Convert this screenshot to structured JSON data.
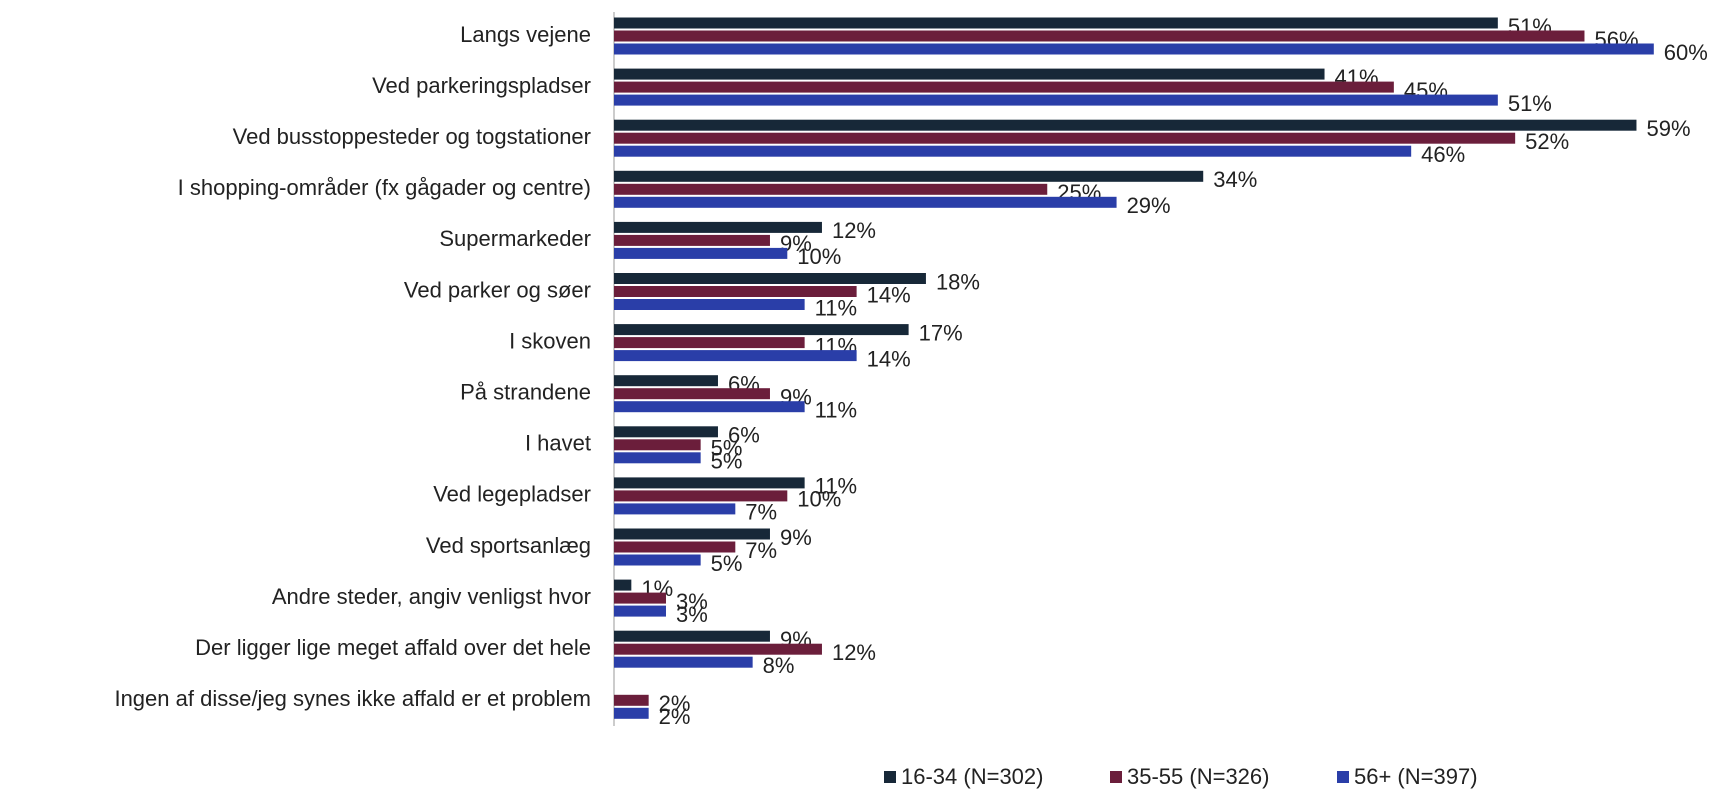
{
  "chart_data": {
    "type": "bar",
    "orientation": "horizontal",
    "categories": [
      "Langs vejene",
      "Ved parkeringspladser",
      "Ved busstoppesteder og togstationer",
      "I shopping-områder (fx gågader og centre)",
      "Supermarkeder",
      "Ved parker og søer",
      "I skoven",
      "På strandene",
      "I havet",
      "Ved legepladser",
      "Ved sportsanlæg",
      "Andre steder, angiv venligst hvor",
      "Der ligger lige meget affald over det hele",
      "Ingen af disse/jeg synes ikke affald er et problem"
    ],
    "series": [
      {
        "name": "16-34 (N=302)",
        "color": "#172838",
        "values": [
          51,
          41,
          59,
          34,
          12,
          18,
          17,
          6,
          6,
          11,
          9,
          1,
          9,
          null
        ],
        "value_labels": [
          "51%",
          "41%",
          "59%",
          "34%",
          "12%",
          "18%",
          "17%",
          "6%",
          "6%",
          "11%",
          "9%",
          "1%",
          "9%",
          null
        ]
      },
      {
        "name": "35-55 (N=326)",
        "color": "#6b1e3b",
        "values": [
          56,
          45,
          52,
          25,
          9,
          14,
          11,
          9,
          5,
          10,
          7,
          3,
          12,
          2
        ],
        "value_labels": [
          "56%",
          "45%",
          "52%",
          "25%",
          "9%",
          "14%",
          "11%",
          "9%",
          "5%",
          "10%",
          "7%",
          "3%",
          "12%",
          "2%"
        ]
      },
      {
        "name": "56+ (N=397)",
        "color": "#2a3ea8",
        "values": [
          60,
          51,
          46,
          29,
          10,
          11,
          14,
          11,
          5,
          7,
          5,
          3,
          8,
          2
        ],
        "value_labels": [
          "60%",
          "51%",
          "46%",
          "29%",
          "10%",
          "11%",
          "14%",
          "11%",
          "5%",
          "7%",
          "5%",
          "3%",
          "8%",
          "2%"
        ]
      }
    ],
    "legend": "bottom"
  }
}
